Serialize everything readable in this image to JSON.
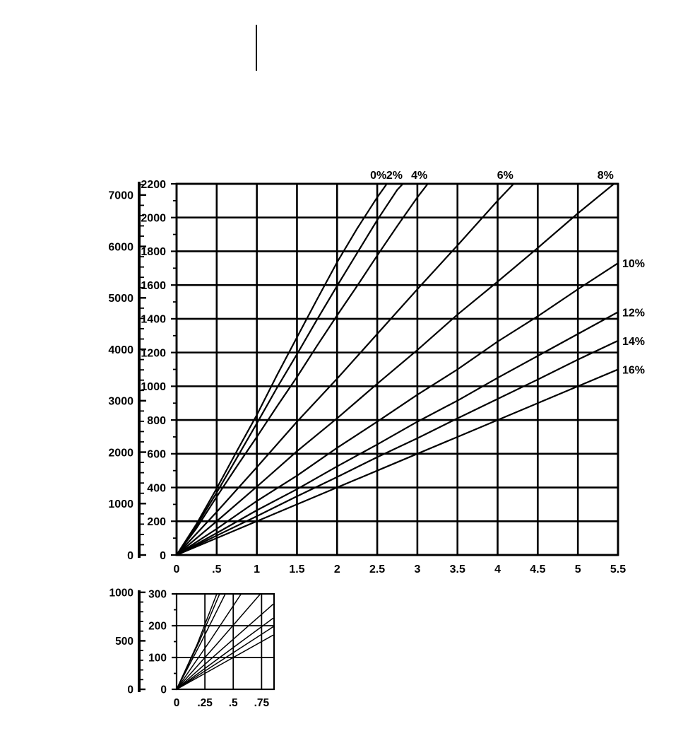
{
  "page": {
    "background": "#ffffff",
    "ink_color": "#000000"
  },
  "chart_data": [
    {
      "type": "line",
      "title": "",
      "xlabel": "",
      "ylabel": "",
      "grid": true,
      "x_axis": {
        "min": 0,
        "max": 5.5,
        "values": [
          0,
          0.5,
          1,
          1.5,
          2,
          2.5,
          3,
          3.5,
          4,
          4.5,
          5,
          5.5
        ],
        "labels": [
          "0",
          ".5",
          "1",
          "1.5",
          "2",
          "2.5",
          "3",
          "3.5",
          "4",
          "4.5",
          "5",
          "5.5"
        ]
      },
      "y_axis_inner": {
        "min": 0,
        "max": 2200,
        "minor_step": 100,
        "values": [
          0,
          200,
          400,
          600,
          800,
          1000,
          1200,
          1400,
          1600,
          1800,
          2000,
          2200
        ],
        "labels": [
          "0",
          "200",
          "400",
          "600",
          "800",
          "1000",
          "1200",
          "1400",
          "1600",
          "1800",
          "2000",
          "2200"
        ]
      },
      "y_axis_outer": {
        "unit_ratio": 3.28084,
        "minor_step": 200,
        "values": [
          0,
          1000,
          2000,
          3000,
          4000,
          5000,
          6000,
          7000
        ],
        "labels": [
          "0",
          "1000",
          "2000",
          "3000",
          "4000",
          "5000",
          "6000",
          "7000"
        ]
      },
      "series": [
        {
          "name": "0%",
          "label_side": "top",
          "x": [
            0,
            0.25,
            0.5,
            0.75,
            1,
            1.25,
            1.5,
            1.75,
            2,
            2.25,
            2.5,
            2.62
          ],
          "y": [
            0,
            185,
            395,
            615,
            830,
            1065,
            1290,
            1515,
            1735,
            1935,
            2120,
            2200
          ]
        },
        {
          "name": "2%",
          "label_side": "top",
          "x": [
            0,
            0.25,
            0.5,
            0.75,
            1,
            1.25,
            1.5,
            1.75,
            2,
            2.25,
            2.5,
            2.75,
            2.82
          ],
          "y": [
            0,
            175,
            370,
            575,
            780,
            990,
            1190,
            1395,
            1595,
            1790,
            1985,
            2165,
            2200
          ]
        },
        {
          "name": "4%",
          "label_side": "top",
          "x": [
            0,
            0.25,
            0.5,
            0.75,
            1,
            1.25,
            1.5,
            1.75,
            2,
            2.25,
            2.5,
            2.75,
            3,
            3.13
          ],
          "y": [
            0,
            160,
            345,
            525,
            700,
            880,
            1055,
            1240,
            1420,
            1595,
            1775,
            1950,
            2120,
            2200
          ]
        },
        {
          "name": "6%",
          "label_side": "top",
          "x": [
            0,
            0.5,
            1,
            1.5,
            2,
            2.5,
            3,
            3.5,
            4,
            4.2
          ],
          "y": [
            0,
            255,
            520,
            790,
            1045,
            1310,
            1575,
            1835,
            2100,
            2200
          ]
        },
        {
          "name": "8%",
          "label_side": "top",
          "x": [
            0,
            0.5,
            1,
            1.5,
            2,
            2.5,
            3,
            3.5,
            4,
            4.5,
            5,
            5.45
          ],
          "y": [
            0,
            200,
            405,
            615,
            810,
            1015,
            1215,
            1425,
            1620,
            1820,
            2025,
            2200
          ]
        },
        {
          "name": "10%",
          "label_side": "right",
          "x": [
            0,
            0.5,
            1,
            1.5,
            2,
            2.5,
            3,
            3.5,
            4,
            4.5,
            5,
            5.5
          ],
          "y": [
            0,
            155,
            320,
            470,
            635,
            790,
            950,
            1100,
            1265,
            1415,
            1575,
            1730
          ]
        },
        {
          "name": "12%",
          "label_side": "right",
          "x": [
            0,
            0.5,
            1,
            1.5,
            2,
            2.5,
            3,
            3.5,
            4,
            4.5,
            5,
            5.5
          ],
          "y": [
            0,
            130,
            265,
            390,
            525,
            655,
            790,
            915,
            1050,
            1180,
            1310,
            1440
          ]
        },
        {
          "name": "14%",
          "label_side": "right",
          "x": [
            0,
            0.5,
            1,
            1.5,
            2,
            2.5,
            3,
            3.5,
            4,
            4.5,
            5,
            5.5
          ],
          "y": [
            0,
            115,
            230,
            348,
            462,
            580,
            692,
            810,
            925,
            1040,
            1158,
            1270
          ]
        },
        {
          "name": "16%",
          "label_side": "right",
          "x": [
            0,
            0.5,
            1,
            1.5,
            2,
            2.5,
            3,
            3.5,
            4,
            4.5,
            5,
            5.5
          ],
          "y": [
            0,
            100,
            200,
            300,
            400,
            500,
            600,
            700,
            800,
            900,
            1000,
            1100
          ]
        }
      ]
    },
    {
      "type": "line",
      "title": "",
      "xlabel": "",
      "ylabel": "",
      "grid": true,
      "x_axis": {
        "min": 0,
        "max": 0.86,
        "values": [
          0,
          0.25,
          0.5,
          0.75
        ],
        "labels": [
          "0",
          ".25",
          ".5",
          ".75"
        ]
      },
      "y_axis_inner": {
        "min": 0,
        "max": 300,
        "minor_step": 50,
        "values": [
          0,
          100,
          200,
          300
        ],
        "labels": [
          "0",
          "100",
          "200",
          "300"
        ]
      },
      "y_axis_outer": {
        "unit_ratio": 3.28084,
        "minor_step": 100,
        "values": [
          0,
          500,
          1000
        ],
        "labels": [
          "0",
          "500",
          "1000"
        ]
      },
      "series": [
        {
          "name": "0%",
          "label_side": "none",
          "x": [
            0,
            0.18,
            0.355
          ],
          "y": [
            0,
            140,
            300
          ]
        },
        {
          "name": "2%",
          "label_side": "none",
          "x": [
            0,
            0.2,
            0.38
          ],
          "y": [
            0,
            150,
            300
          ]
        },
        {
          "name": "4%",
          "label_side": "none",
          "x": [
            0,
            0.22,
            0.43
          ],
          "y": [
            0,
            150,
            300
          ]
        },
        {
          "name": "6%",
          "label_side": "none",
          "x": [
            0,
            0.3,
            0.57
          ],
          "y": [
            0,
            155,
            300
          ]
        },
        {
          "name": "8%",
          "label_side": "none",
          "x": [
            0,
            0.35,
            0.74
          ],
          "y": [
            0,
            140,
            300
          ]
        },
        {
          "name": "10%",
          "label_side": "none",
          "x": [
            0,
            0.4,
            0.85
          ],
          "y": [
            0,
            126,
            267
          ]
        },
        {
          "name": "12%",
          "label_side": "none",
          "x": [
            0,
            0.4,
            0.85
          ],
          "y": [
            0,
            105,
            223
          ]
        },
        {
          "name": "14%",
          "label_side": "none",
          "x": [
            0,
            0.4,
            0.85
          ],
          "y": [
            0,
            92,
            196
          ]
        },
        {
          "name": "16%",
          "label_side": "none",
          "x": [
            0,
            0.4,
            0.85
          ],
          "y": [
            0,
            80,
            170
          ]
        }
      ]
    }
  ]
}
